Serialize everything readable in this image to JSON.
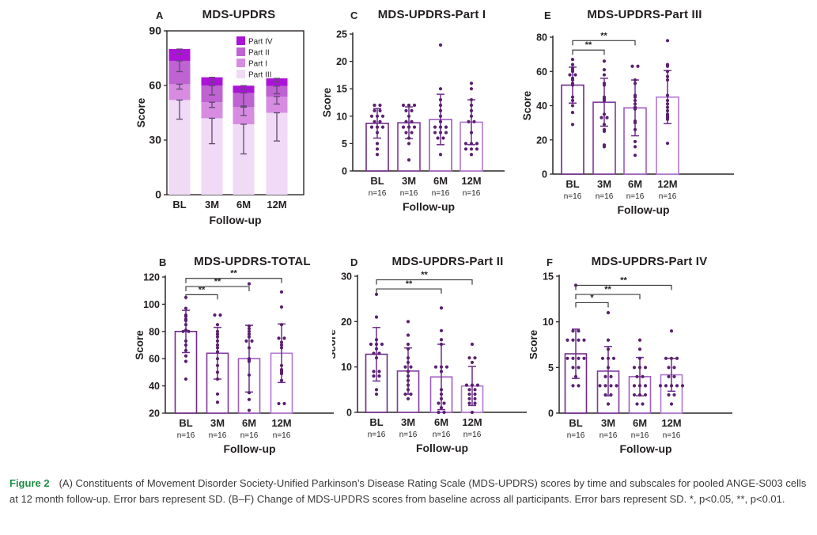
{
  "caption": {
    "label": "Figure 2",
    "text": "(A) Constituents of Movement Disorder Society-Unified Parkinson’s Disease Rating Scale (MDS-UPDRS) scores by time and subscales for pooled ANGE-S003 cells at 12 month follow-up. Error bars represent SD. (B–F) Change of MDS-UPDRS scores from baseline across all participants. Error bars represent SD. *, p<0.05, **, p<0.01."
  },
  "colors": {
    "axis": "#2a2627",
    "part_iv": "#ab14d6",
    "part_ii": "#bf62d2",
    "part_i": "#d78ce2",
    "part_iii": "#f0daf6",
    "bar_outlines": [
      "#6f2a88",
      "#80389c",
      "#9e5cc0",
      "#b277d2"
    ],
    "dot": "#5a2070",
    "error_bar": "#6d2d8c",
    "stacked_whisker": "#5d4a6e",
    "bracket": "#3c3c3c",
    "caption_label_green": "#1e8c45"
  },
  "chart_data": [
    {
      "panel": "A",
      "type": "stacked-bar",
      "title": "MDS-UPDRS",
      "xlabel": "Follow-up",
      "ylabel": "Score",
      "categories": [
        "BL",
        "3M",
        "6M",
        "12M"
      ],
      "ylim": [
        0,
        90
      ],
      "yticks": [
        0,
        30,
        60,
        90
      ],
      "legend_order": [
        "Part IV",
        "Part II",
        "Part I",
        "Part III"
      ],
      "series": [
        {
          "name": "Part III",
          "color": "#f0daf6",
          "values": [
            52,
            42,
            38.7,
            45
          ],
          "sd": [
            10.5,
            14,
            16.3,
            15.5
          ]
        },
        {
          "name": "Part I",
          "color": "#d78ce2",
          "values": [
            8.7,
            8.8,
            9.4,
            8.9
          ],
          "sd": [
            2.7,
            2.9,
            4.6,
            4.1
          ]
        },
        {
          "name": "Part II",
          "color": "#bf62d2",
          "values": [
            12.8,
            9.1,
            7.8,
            5.8
          ],
          "sd": [
            5.9,
            5.1,
            7.2,
            4.3
          ]
        },
        {
          "name": "Part IV",
          "color": "#ab14d6",
          "values": [
            6.5,
            4.6,
            4.0,
            4.2
          ],
          "sd": [
            2.7,
            2.7,
            2.1,
            1.8
          ]
        }
      ]
    },
    {
      "panel": "B",
      "type": "bar",
      "title": "MDS-UPDRS-TOTAL",
      "xlabel": "Follow-up",
      "ylabel": "Score",
      "categories": [
        "BL",
        "3M",
        "6M",
        "12M"
      ],
      "n_labels": [
        "n=16",
        "n=16",
        "n=16",
        "n=16"
      ],
      "ylim": [
        20,
        120
      ],
      "yticks": [
        20,
        40,
        60,
        80,
        100,
        120
      ],
      "means": [
        80,
        64,
        60,
        64
      ],
      "sd": [
        15.5,
        19,
        24.5,
        21.5
      ],
      "points": [
        [
          105,
          97,
          92,
          91,
          89,
          88,
          85,
          81,
          80,
          80,
          73,
          70,
          66,
          62,
          58,
          45
        ],
        [
          92,
          92,
          85,
          80,
          78,
          76,
          73,
          70,
          68,
          65,
          60,
          55,
          50,
          45,
          34,
          28
        ],
        [
          115,
          84,
          82,
          80,
          78,
          76,
          73,
          73,
          68,
          60,
          59,
          58,
          48,
          35,
          30,
          22
        ],
        [
          109,
          98,
          85,
          75,
          75,
          72,
          70,
          68,
          55,
          52,
          51,
          50,
          49,
          44,
          27,
          27
        ]
      ],
      "significance": [
        {
          "from": 0,
          "to": 1,
          "y": 107,
          "label": "**"
        },
        {
          "from": 0,
          "to": 2,
          "y": 113,
          "label": "**"
        },
        {
          "from": 0,
          "to": 3,
          "y": 119,
          "label": "**"
        }
      ]
    },
    {
      "panel": "C",
      "type": "bar",
      "title": "MDS-UPDRS-Part I",
      "xlabel": "Follow-up",
      "ylabel": "Score",
      "categories": [
        "BL",
        "3M",
        "6M",
        "12M"
      ],
      "n_labels": [
        "n=16",
        "n=16",
        "n=16",
        "n=16"
      ],
      "ylim": [
        0,
        25
      ],
      "yticks": [
        0,
        5,
        10,
        15,
        20,
        25
      ],
      "means": [
        8.7,
        8.8,
        9.4,
        8.9
      ],
      "sd": [
        2.7,
        2.9,
        4.6,
        4.1
      ],
      "points": [
        [
          12,
          12,
          11,
          11,
          10,
          10,
          10,
          9,
          9,
          8,
          8,
          8,
          7,
          5,
          4,
          3
        ],
        [
          12,
          12,
          12,
          11,
          11,
          10,
          9,
          9,
          8,
          8,
          8,
          7,
          7,
          6,
          5,
          2
        ],
        [
          23,
          15,
          13,
          12,
          11,
          10,
          9,
          8,
          8,
          8,
          7,
          7,
          7,
          6,
          6,
          3
        ],
        [
          16,
          15,
          13,
          12,
          11,
          10,
          9,
          9,
          7,
          5,
          5,
          5,
          4,
          4,
          4,
          3
        ]
      ],
      "significance": []
    },
    {
      "panel": "D",
      "type": "bar",
      "title": "MDS-UPDRS-Part II",
      "xlabel": "Follow-up",
      "ylabel": "Score",
      "categories": [
        "BL",
        "3M",
        "6M",
        "12M"
      ],
      "n_labels": [
        "n=16",
        "n=16",
        "n=16",
        "n=16"
      ],
      "ylim": [
        0,
        30
      ],
      "yticks": [
        0,
        10,
        20,
        30
      ],
      "means": [
        12.8,
        9.1,
        7.8,
        5.8
      ],
      "sd": [
        5.9,
        5.1,
        7.2,
        4.3
      ],
      "points": [
        [
          26,
          21,
          16,
          15,
          15,
          15,
          14,
          13,
          13,
          12,
          9,
          9,
          8,
          8,
          5,
          4
        ],
        [
          20,
          17,
          15,
          14,
          12,
          11,
          10,
          10,
          9,
          8,
          7,
          6,
          5,
          4,
          4,
          3
        ],
        [
          23,
          18,
          16,
          15,
          10,
          10,
          10,
          9,
          5,
          4,
          3,
          2,
          2,
          1,
          0,
          0
        ],
        [
          15,
          12,
          12,
          11,
          6,
          6,
          6,
          5,
          5,
          4,
          4,
          3,
          3,
          2,
          2,
          0
        ]
      ],
      "significance": [
        {
          "from": 0,
          "to": 2,
          "y": 27.2,
          "label": "**"
        },
        {
          "from": 0,
          "to": 3,
          "y": 29.2,
          "label": "**"
        }
      ]
    },
    {
      "panel": "E",
      "type": "bar",
      "title": "MDS-UPDRS-Part III",
      "xlabel": "Follow-up",
      "ylabel": "Score",
      "categories": [
        "BL",
        "3M",
        "6M",
        "12M"
      ],
      "n_labels": [
        "n=16",
        "n=16",
        "n=16",
        "n=16"
      ],
      "ylim": [
        0,
        80
      ],
      "yticks": [
        0,
        20,
        40,
        60,
        80
      ],
      "means": [
        52,
        42,
        38.7,
        45
      ],
      "sd": [
        10.5,
        14,
        16.3,
        15.5
      ],
      "points": [
        [
          67,
          64,
          62,
          61,
          60,
          58,
          58,
          56,
          55,
          53,
          52,
          45,
          43,
          40,
          36,
          29
        ],
        [
          66,
          61,
          58,
          53,
          52,
          45,
          44,
          43,
          35,
          33,
          33,
          29,
          26,
          25,
          17,
          16
        ],
        [
          63,
          63,
          55,
          53,
          46,
          45,
          43,
          41,
          39,
          38,
          31,
          30,
          26,
          19,
          16,
          11
        ],
        [
          78,
          64,
          63,
          60,
          57,
          55,
          46,
          43,
          41,
          39,
          37,
          35,
          34,
          33,
          32,
          18
        ]
      ],
      "significance": [
        {
          "from": 0,
          "to": 1,
          "y": 72.5,
          "label": "**"
        },
        {
          "from": 0,
          "to": 2,
          "y": 78,
          "label": "**"
        }
      ]
    },
    {
      "panel": "F",
      "type": "bar",
      "title": "MDS-UPDRS-Part IV",
      "xlabel": "Follow-up",
      "ylabel": "Score",
      "categories": [
        "BL",
        "3M",
        "6M",
        "12M"
      ],
      "n_labels": [
        "n=16",
        "n=16",
        "n=16",
        "n=16"
      ],
      "ylim": [
        0,
        15
      ],
      "yticks": [
        0,
        5,
        10,
        15
      ],
      "means": [
        6.5,
        4.6,
        4.0,
        4.2
      ],
      "sd": [
        2.7,
        2.7,
        2.1,
        1.8
      ],
      "points": [
        [
          14,
          9,
          9,
          8,
          8,
          8,
          8,
          6,
          6,
          6,
          6,
          5,
          5,
          4,
          3,
          3
        ],
        [
          11,
          8,
          7,
          6,
          6,
          6,
          5,
          4,
          4,
          3,
          3,
          3,
          3,
          2,
          2,
          1
        ],
        [
          8,
          7,
          6,
          5,
          5,
          5,
          4,
          4,
          3,
          3,
          3,
          2,
          2,
          2,
          1,
          1
        ],
        [
          9,
          6,
          6,
          6,
          5,
          5,
          4,
          4,
          3,
          3,
          3,
          3,
          3,
          2,
          2,
          1
        ]
      ],
      "significance": [
        {
          "from": 0,
          "to": 1,
          "y": 12.1,
          "label": "*"
        },
        {
          "from": 0,
          "to": 2,
          "y": 13.0,
          "label": "**"
        },
        {
          "from": 0,
          "to": 3,
          "y": 14.0,
          "label": "**"
        }
      ]
    }
  ]
}
